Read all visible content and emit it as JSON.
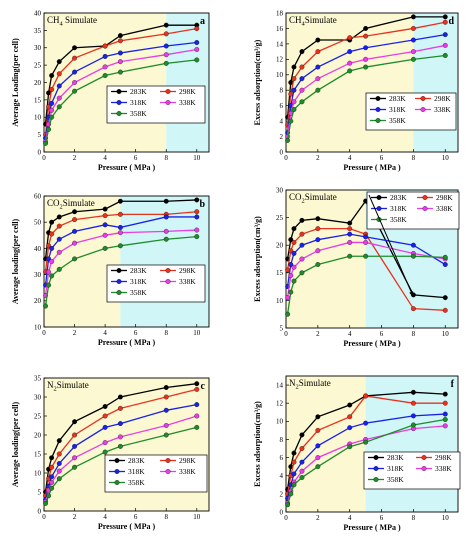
{
  "colors": {
    "283K": "#000000",
    "298K": "#e8321e",
    "318K": "#1a22e8",
    "338K": "#e83ce8",
    "358K": "#1e8c2a",
    "bg_yellow": "#fbf8d2",
    "bg_cyan": "#d0f6f7"
  },
  "chart_data": [
    {
      "id": "a",
      "type": "line",
      "title": "CH4 Simulate",
      "title_parts": [
        "CH",
        "4",
        " Simulate"
      ],
      "xlabel": "Pressure ( MPa )",
      "ylabel": "Average Loading(per cell)",
      "xlim": [
        0,
        10.8
      ],
      "ylim": [
        0,
        40
      ],
      "xticks": [
        0,
        2,
        4,
        6,
        8,
        10
      ],
      "yticks": [
        0,
        5,
        10,
        15,
        20,
        25,
        30,
        35,
        40
      ],
      "shaded_regions": [
        {
          "from": 0,
          "to": 8,
          "color": "yellow"
        },
        {
          "from": 8,
          "to": 10.8,
          "color": "cyan"
        }
      ],
      "legend": [
        "283K",
        "298K",
        "318K",
        "338K",
        "358K"
      ],
      "series": [
        {
          "name": "283K",
          "x": [
            0.1,
            0.3,
            0.5,
            1,
            2,
            4,
            5,
            8,
            10
          ],
          "y": [
            8,
            17,
            22,
            26,
            30,
            30.5,
            33.5,
            36.5,
            36.5
          ]
        },
        {
          "name": "298K",
          "x": [
            0.1,
            0.3,
            0.5,
            1,
            2,
            4,
            5,
            8,
            10
          ],
          "y": [
            5,
            13,
            18,
            22.5,
            27,
            30.5,
            32,
            34,
            35.5
          ]
        },
        {
          "name": "318K",
          "x": [
            0.1,
            0.3,
            0.5,
            1,
            2,
            4,
            5,
            8,
            10
          ],
          "y": [
            4,
            10,
            14,
            19,
            23,
            27.5,
            28.5,
            30.5,
            31.5
          ]
        },
        {
          "name": "338K",
          "x": [
            0.1,
            0.3,
            0.5,
            1,
            2,
            4,
            5,
            8,
            10
          ],
          "y": [
            3,
            8,
            12,
            15.5,
            20,
            24.5,
            26,
            28,
            29.5
          ]
        },
        {
          "name": "358K",
          "x": [
            0.1,
            0.3,
            0.5,
            1,
            2,
            4,
            5,
            8,
            10
          ],
          "y": [
            2.5,
            6.5,
            10,
            13,
            17.5,
            22,
            23,
            25.5,
            26.5
          ]
        }
      ]
    },
    {
      "id": "b",
      "type": "line",
      "title": "CO2Simulate",
      "title_parts": [
        "CO",
        "2",
        "Simulate"
      ],
      "xlabel": "Pressure ( MPa )",
      "ylabel": "Average loading(per cell)",
      "xlim": [
        0,
        10.8
      ],
      "ylim": [
        10,
        60
      ],
      "xticks": [
        0,
        2,
        4,
        6,
        8,
        10
      ],
      "yticks": [
        10,
        20,
        30,
        40,
        50,
        60
      ],
      "shaded_regions": [
        {
          "from": 0,
          "to": 5,
          "color": "yellow"
        },
        {
          "from": 5,
          "to": 10.8,
          "color": "cyan"
        }
      ],
      "legend": [
        "283K",
        "298K",
        "318K",
        "338K",
        "358K"
      ],
      "series": [
        {
          "name": "283K",
          "x": [
            0.1,
            0.3,
            0.5,
            1,
            2,
            4,
            5,
            8,
            10
          ],
          "y": [
            36,
            46,
            50,
            52,
            54,
            55,
            58,
            58,
            58.5
          ]
        },
        {
          "name": "298K",
          "x": [
            0.1,
            0.3,
            0.5,
            1,
            2,
            4,
            5,
            8,
            10
          ],
          "y": [
            31,
            41,
            45.5,
            48.5,
            51,
            52.5,
            53,
            53,
            54
          ]
        },
        {
          "name": "318K",
          "x": [
            0.1,
            0.3,
            0.5,
            1,
            2,
            4,
            5,
            8,
            10
          ],
          "y": [
            26,
            36,
            40,
            43.5,
            46.5,
            49,
            48,
            52,
            52
          ]
        },
        {
          "name": "338K",
          "x": [
            0.1,
            0.3,
            0.5,
            1,
            2,
            4,
            5,
            8,
            10
          ],
          "y": [
            22,
            31,
            35,
            38.5,
            42,
            45,
            46,
            46.5,
            47
          ]
        },
        {
          "name": "358K",
          "x": [
            0.1,
            0.3,
            0.5,
            1,
            2,
            4,
            5,
            8,
            10
          ],
          "y": [
            18,
            26,
            29.5,
            32,
            36,
            40,
            41,
            43.5,
            44.5
          ]
        }
      ]
    },
    {
      "id": "c",
      "type": "line",
      "title": "N2Simulate",
      "title_parts": [
        "N",
        "2",
        "Simulate"
      ],
      "xlabel": "Pressure ( MPa )",
      "ylabel": "Average loading(per cell)",
      "xlim": [
        0,
        10.8
      ],
      "ylim": [
        0,
        35
      ],
      "xticks": [
        0,
        2,
        4,
        6,
        8,
        10
      ],
      "yticks": [
        0,
        5,
        10,
        15,
        20,
        25,
        30,
        35
      ],
      "shaded_regions": [
        {
          "from": 0,
          "to": 10.8,
          "color": "yellow"
        }
      ],
      "legend": [
        "283K",
        "298K",
        "318K",
        "338K",
        "358K"
      ],
      "series": [
        {
          "name": "283K",
          "x": [
            0.1,
            0.3,
            0.5,
            1,
            2,
            4,
            5,
            8,
            10
          ],
          "y": [
            5,
            11,
            14,
            18.5,
            23.5,
            27.5,
            30,
            32.5,
            33.5
          ]
        },
        {
          "name": "298K",
          "x": [
            0.1,
            0.3,
            0.5,
            1,
            2,
            4,
            5,
            8,
            10
          ],
          "y": [
            4,
            8.5,
            11.5,
            15,
            20,
            25,
            27,
            30,
            32
          ]
        },
        {
          "name": "318K",
          "x": [
            0.1,
            0.3,
            0.5,
            1,
            2,
            4,
            5,
            8,
            10
          ],
          "y": [
            3,
            6.5,
            9,
            12.5,
            17,
            22,
            23,
            26.5,
            28
          ]
        },
        {
          "name": "338K",
          "x": [
            0.1,
            0.3,
            0.5,
            1,
            2,
            4,
            5,
            8,
            10
          ],
          "y": [
            2.5,
            5.5,
            7.5,
            10.5,
            14,
            18,
            19.5,
            22.5,
            25
          ]
        },
        {
          "name": "358K",
          "x": [
            0.1,
            0.3,
            0.5,
            1,
            2,
            4,
            5,
            8,
            10
          ],
          "y": [
            2,
            4,
            6,
            8.5,
            11.5,
            15.5,
            17,
            20,
            22
          ]
        }
      ]
    },
    {
      "id": "d",
      "type": "line",
      "title": "CH4Simulate",
      "title_parts": [
        "CH",
        "4",
        "Simulate"
      ],
      "xlabel": "Pressure ( MPa )",
      "ylabel": "Excess adsorption(cm³/g)",
      "xlim": [
        0,
        10.8
      ],
      "ylim": [
        0,
        18
      ],
      "xticks": [
        0,
        2,
        4,
        6,
        8,
        10
      ],
      "yticks": [
        0,
        2,
        4,
        6,
        8,
        10,
        12,
        14,
        16,
        18
      ],
      "shaded_regions": [
        {
          "from": 0,
          "to": 8,
          "color": "yellow"
        },
        {
          "from": 8,
          "to": 10.8,
          "color": "cyan"
        }
      ],
      "legend": [
        "283K",
        "298K",
        "318K",
        "338K",
        "358K"
      ],
      "series": [
        {
          "name": "283K",
          "x": [
            0.1,
            0.3,
            0.5,
            1,
            2,
            4,
            5,
            8,
            10
          ],
          "y": [
            4.5,
            9,
            11,
            13,
            14.5,
            14.5,
            16,
            17.5,
            17.5
          ]
        },
        {
          "name": "298K",
          "x": [
            0.1,
            0.3,
            0.5,
            1,
            2,
            4,
            5,
            8,
            10
          ],
          "y": [
            3.5,
            7.5,
            9.5,
            11,
            13,
            14.8,
            15,
            16,
            16.8
          ]
        },
        {
          "name": "318K",
          "x": [
            0.1,
            0.3,
            0.5,
            1,
            2,
            4,
            5,
            8,
            10
          ],
          "y": [
            2.5,
            6,
            8,
            9.5,
            11,
            13,
            13.5,
            14.5,
            15.2
          ]
        },
        {
          "name": "338K",
          "x": [
            0.1,
            0.3,
            0.5,
            1,
            2,
            4,
            5,
            8,
            10
          ],
          "y": [
            2,
            5,
            6.5,
            8,
            9.5,
            11.5,
            12,
            13,
            13.8
          ]
        },
        {
          "name": "358K",
          "x": [
            0.1,
            0.3,
            0.5,
            1,
            2,
            4,
            5,
            8,
            10
          ],
          "y": [
            1.5,
            4,
            5.5,
            6.5,
            8,
            10.5,
            11,
            12,
            12.5
          ]
        }
      ]
    },
    {
      "id": "e",
      "type": "line",
      "title": "CO2Simulate",
      "title_parts": [
        "CO",
        "2",
        "Simulate"
      ],
      "xlabel": "Pressure ( MPa )",
      "ylabel": "Excess adsorption(cm³/g)",
      "xlim": [
        0,
        10.8
      ],
      "ylim": [
        5,
        30
      ],
      "xticks": [
        0,
        2,
        4,
        6,
        8,
        10
      ],
      "yticks": [
        5,
        10,
        15,
        20,
        25,
        30
      ],
      "shaded_regions": [
        {
          "from": 0,
          "to": 5,
          "color": "yellow"
        },
        {
          "from": 5,
          "to": 10.8,
          "color": "cyan"
        }
      ],
      "legend": [
        "283K",
        "298K",
        "318K",
        "338K",
        "358K"
      ],
      "series": [
        {
          "name": "283K",
          "x": [
            0.1,
            0.3,
            0.5,
            1,
            2,
            4,
            5,
            8,
            10
          ],
          "y": [
            17.5,
            21,
            23,
            24.5,
            24.8,
            24,
            28,
            11,
            10.5
          ]
        },
        {
          "name": "298K",
          "x": [
            0.1,
            0.3,
            0.5,
            1,
            2,
            4,
            5,
            8,
            10
          ],
          "y": [
            15.5,
            19,
            20.5,
            22,
            23,
            23,
            22,
            8.5,
            8.2
          ]
        },
        {
          "name": "318K",
          "x": [
            0.1,
            0.3,
            0.5,
            1,
            2,
            4,
            5,
            8,
            10
          ],
          "y": [
            12.5,
            16.5,
            18.5,
            20,
            21,
            22,
            21.5,
            20,
            16.5
          ]
        },
        {
          "name": "338K",
          "x": [
            0.1,
            0.3,
            0.5,
            1,
            2,
            4,
            5,
            8,
            10
          ],
          "y": [
            10.5,
            14.5,
            16,
            17.5,
            19,
            20.5,
            20.5,
            18.5,
            17.5
          ]
        },
        {
          "name": "358K",
          "x": [
            0.1,
            0.3,
            0.5,
            1,
            2,
            4,
            5,
            8,
            10
          ],
          "y": [
            7.5,
            11.5,
            13.5,
            15,
            16.5,
            18,
            18,
            18,
            17.8
          ]
        }
      ]
    },
    {
      "id": "f",
      "type": "line",
      "title": "N2Simulate",
      "title_parts": [
        "N",
        "2",
        "Simulate"
      ],
      "xlabel": "Pressure ( MPa )",
      "ylabel": "Excess adsorption(cm³/g)",
      "xlim": [
        0,
        10.8
      ],
      "ylim": [
        0,
        15
      ],
      "xticks": [
        0,
        2,
        4,
        6,
        8,
        10
      ],
      "yticks": [
        0,
        2,
        4,
        6,
        8,
        10,
        12,
        14
      ],
      "shaded_regions": [
        {
          "from": 0,
          "to": 5,
          "color": "yellow"
        },
        {
          "from": 5,
          "to": 10.8,
          "color": "cyan"
        }
      ],
      "legend": [
        "283K",
        "298K",
        "318K",
        "338K",
        "358K"
      ],
      "series": [
        {
          "name": "283K",
          "x": [
            0.1,
            0.3,
            0.5,
            1,
            2,
            4,
            5,
            8,
            10
          ],
          "y": [
            2.5,
            5,
            6.5,
            8.5,
            10.5,
            11.8,
            12.8,
            13.2,
            13
          ]
        },
        {
          "name": "298K",
          "x": [
            0.1,
            0.3,
            0.5,
            1,
            2,
            4,
            5,
            8,
            10
          ],
          "y": [
            2,
            4,
            5.5,
            7,
            9,
            10.5,
            12.8,
            12,
            12
          ]
        },
        {
          "name": "318K",
          "x": [
            0.1,
            0.3,
            0.5,
            1,
            2,
            4,
            5,
            8,
            10
          ],
          "y": [
            1.5,
            3,
            4.2,
            5.5,
            7.3,
            9.3,
            9.8,
            10.6,
            10.8
          ]
        },
        {
          "name": "338K",
          "x": [
            0.1,
            0.3,
            0.5,
            1,
            2,
            4,
            5,
            8,
            10
          ],
          "y": [
            1,
            2.3,
            3.3,
            4.5,
            6,
            7.5,
            8,
            9.2,
            9.5
          ]
        },
        {
          "name": "358K",
          "x": [
            0.1,
            0.3,
            0.5,
            1,
            2,
            4,
            5,
            8,
            10
          ],
          "y": [
            0.8,
            2,
            3,
            3.8,
            5,
            7.2,
            7.7,
            9.6,
            10.2
          ]
        }
      ]
    }
  ]
}
